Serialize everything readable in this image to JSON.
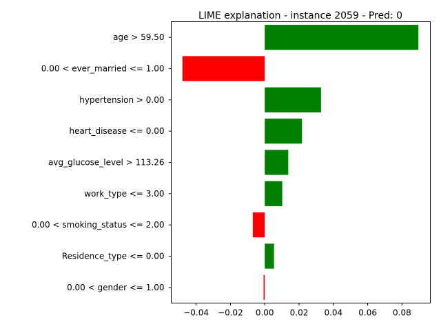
{
  "chart_data": {
    "type": "bar",
    "orientation": "horizontal",
    "title": "LIME explanation - instance 2059 - Pred: 0",
    "xlabel": "",
    "ylabel": "",
    "categories": [
      "age > 59.50",
      "0.00 < ever_married <= 1.00",
      "hypertension > 0.00",
      "heart_disease <= 0.00",
      "avg_glucose_level > 113.26",
      "work_type <= 3.00",
      "0.00 < smoking_status <= 2.00",
      "Residence_type <= 0.00",
      "0.00 < gender <= 1.00"
    ],
    "values": [
      0.0895,
      -0.048,
      0.0328,
      0.0217,
      0.0137,
      0.0102,
      -0.007,
      0.0054,
      -0.0007
    ],
    "xlim": [
      -0.0545,
      0.0965
    ],
    "xticks": [
      -0.04,
      -0.02,
      0.0,
      0.02,
      0.04,
      0.06,
      0.08
    ],
    "xtick_labels": [
      "−0.04",
      "−0.02",
      "0.00",
      "0.02",
      "0.04",
      "0.06",
      "0.08"
    ],
    "grid": false,
    "colors": {
      "positive": "#008000",
      "negative": "#ff0000"
    }
  }
}
